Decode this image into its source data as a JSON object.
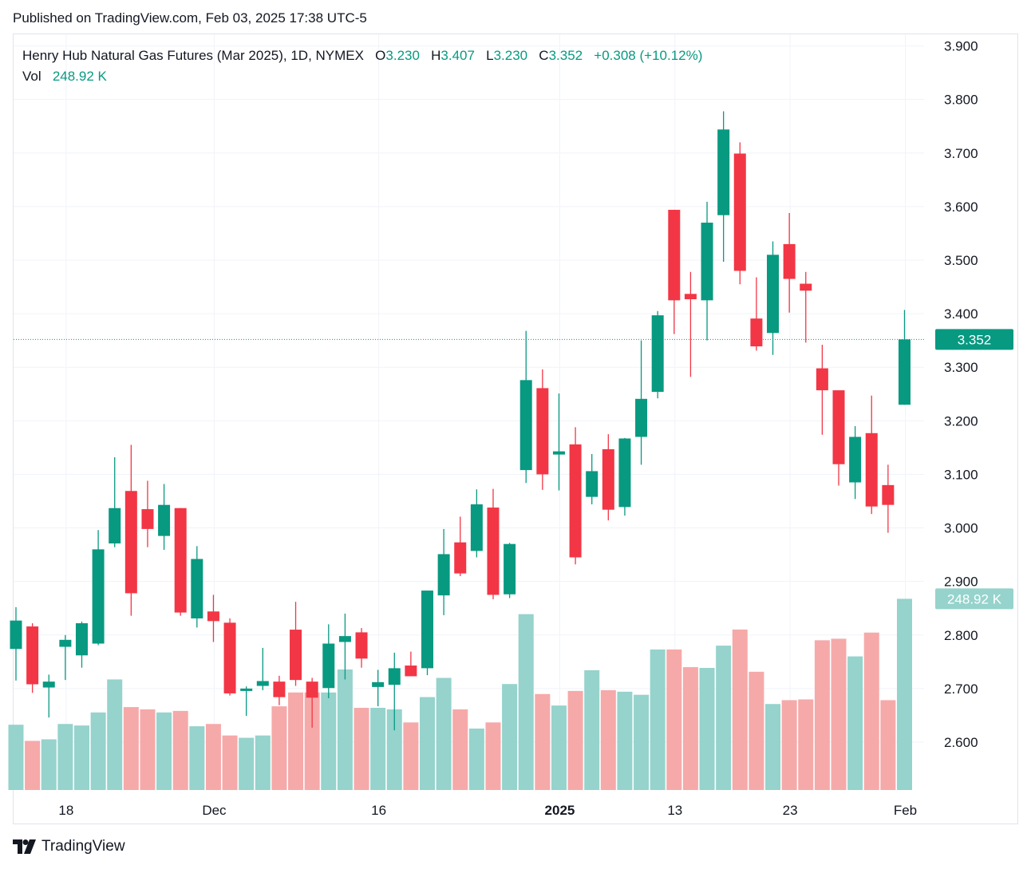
{
  "header": {
    "published": "Published on TradingView.com, Feb 03, 2025 17:38 UTC-5"
  },
  "legend": {
    "symbol": "Henry Hub Natural Gas Futures (Mar 2025), 1D, NYMEX",
    "o_label": "O",
    "o_value": "3.230",
    "h_label": "H",
    "h_value": "3.407",
    "l_label": "L",
    "l_value": "3.230",
    "c_label": "C",
    "c_value": "3.352",
    "change": "+0.308 (+10.12%)",
    "vol_label": "Vol",
    "vol_value": "248.92 K"
  },
  "footer": {
    "brand": "TradingView"
  },
  "colors": {
    "up": "#089981",
    "down": "#f23645",
    "vol_up": "#95d3cc",
    "vol_down": "#f6a9a9",
    "grid": "#f0f3fa",
    "text": "#131722"
  },
  "chart_data": {
    "type": "candlestick",
    "ylim": [
      2.51,
      3.94
    ],
    "y_ticks": [
      "3.900",
      "3.800",
      "3.700",
      "3.600",
      "3.500",
      "3.400",
      "3.300",
      "3.200",
      "3.100",
      "3.000",
      "2.900",
      "2.800",
      "2.700",
      "2.600"
    ],
    "x_ticks": [
      {
        "index": 3,
        "label": "18"
      },
      {
        "index": 12,
        "label": "Dec"
      },
      {
        "index": 22,
        "label": "16"
      },
      {
        "index": 33,
        "label": "2025",
        "bold": true
      },
      {
        "index": 40,
        "label": "13"
      },
      {
        "index": 47,
        "label": "23"
      },
      {
        "index": 54,
        "label": "Feb"
      }
    ],
    "last_price_label": "3.352",
    "last_price": 3.352,
    "last_volume_label": "248.92 K",
    "volume_scale_max": 265,
    "candles": [
      {
        "o": 2.774,
        "h": 2.852,
        "l": 2.715,
        "c": 2.827
      },
      {
        "o": 2.816,
        "h": 2.822,
        "l": 2.692,
        "c": 2.708
      },
      {
        "o": 2.702,
        "h": 2.726,
        "l": 2.646,
        "c": 2.713
      },
      {
        "o": 2.778,
        "h": 2.8,
        "l": 2.716,
        "c": 2.791
      },
      {
        "o": 2.762,
        "h": 2.825,
        "l": 2.739,
        "c": 2.822
      },
      {
        "o": 2.784,
        "h": 2.996,
        "l": 2.781,
        "c": 2.96
      },
      {
        "o": 2.971,
        "h": 3.132,
        "l": 2.964,
        "c": 3.037
      },
      {
        "o": 3.069,
        "h": 3.155,
        "l": 2.836,
        "c": 2.878
      },
      {
        "o": 3.035,
        "h": 3.088,
        "l": 2.964,
        "c": 2.998
      },
      {
        "o": 2.985,
        "h": 3.082,
        "l": 2.959,
        "c": 3.043
      },
      {
        "o": 3.037,
        "h": 3.037,
        "l": 2.836,
        "c": 2.842
      },
      {
        "o": 2.831,
        "h": 2.966,
        "l": 2.814,
        "c": 2.942
      },
      {
        "o": 2.844,
        "h": 2.875,
        "l": 2.787,
        "c": 2.826
      },
      {
        "o": 2.823,
        "h": 2.831,
        "l": 2.687,
        "c": 2.691
      },
      {
        "o": 2.698,
        "h": 2.704,
        "l": 2.649,
        "c": 2.7
      },
      {
        "o": 2.705,
        "h": 2.776,
        "l": 2.697,
        "c": 2.714
      },
      {
        "o": 2.713,
        "h": 2.724,
        "l": 2.669,
        "c": 2.684
      },
      {
        "o": 2.81,
        "h": 2.862,
        "l": 2.705,
        "c": 2.716
      },
      {
        "o": 2.713,
        "h": 2.72,
        "l": 2.627,
        "c": 2.683
      },
      {
        "o": 2.701,
        "h": 2.82,
        "l": 2.682,
        "c": 2.784
      },
      {
        "o": 2.787,
        "h": 2.84,
        "l": 2.717,
        "c": 2.798
      },
      {
        "o": 2.805,
        "h": 2.813,
        "l": 2.739,
        "c": 2.756
      },
      {
        "o": 2.703,
        "h": 2.735,
        "l": 2.667,
        "c": 2.712
      },
      {
        "o": 2.707,
        "h": 2.767,
        "l": 2.622,
        "c": 2.738
      },
      {
        "o": 2.743,
        "h": 2.769,
        "l": 2.726,
        "c": 2.723
      },
      {
        "o": 2.738,
        "h": 2.87,
        "l": 2.725,
        "c": 2.883
      },
      {
        "o": 2.874,
        "h": 2.998,
        "l": 2.837,
        "c": 2.951
      },
      {
        "o": 2.973,
        "h": 3.021,
        "l": 2.91,
        "c": 2.915
      },
      {
        "o": 2.957,
        "h": 3.072,
        "l": 2.945,
        "c": 3.044
      },
      {
        "o": 3.038,
        "h": 3.073,
        "l": 2.867,
        "c": 2.875
      },
      {
        "o": 2.876,
        "h": 2.972,
        "l": 2.869,
        "c": 2.97
      },
      {
        "o": 3.108,
        "h": 3.368,
        "l": 3.084,
        "c": 3.276
      },
      {
        "o": 3.261,
        "h": 3.296,
        "l": 3.071,
        "c": 3.1
      },
      {
        "o": 3.137,
        "h": 3.251,
        "l": 3.07,
        "c": 3.143
      },
      {
        "o": 3.156,
        "h": 3.188,
        "l": 2.932,
        "c": 2.945
      },
      {
        "o": 3.058,
        "h": 3.138,
        "l": 3.044,
        "c": 3.106
      },
      {
        "o": 3.147,
        "h": 3.175,
        "l": 3.014,
        "c": 3.034
      },
      {
        "o": 3.039,
        "h": 3.168,
        "l": 3.023,
        "c": 3.167
      },
      {
        "o": 3.17,
        "h": 3.35,
        "l": 3.118,
        "c": 3.241
      },
      {
        "o": 3.254,
        "h": 3.405,
        "l": 3.242,
        "c": 3.397
      },
      {
        "o": 3.594,
        "h": 3.594,
        "l": 3.362,
        "c": 3.425
      },
      {
        "o": 3.437,
        "h": 3.478,
        "l": 3.282,
        "c": 3.427
      },
      {
        "o": 3.425,
        "h": 3.609,
        "l": 3.35,
        "c": 3.57
      },
      {
        "o": 3.584,
        "h": 3.778,
        "l": 3.497,
        "c": 3.744
      },
      {
        "o": 3.699,
        "h": 3.72,
        "l": 3.455,
        "c": 3.48
      },
      {
        "o": 3.391,
        "h": 3.468,
        "l": 3.331,
        "c": 3.339
      },
      {
        "o": 3.364,
        "h": 3.535,
        "l": 3.323,
        "c": 3.51
      },
      {
        "o": 3.53,
        "h": 3.588,
        "l": 3.402,
        "c": 3.465
      },
      {
        "o": 3.456,
        "h": 3.478,
        "l": 3.346,
        "c": 3.443
      },
      {
        "o": 3.298,
        "h": 3.342,
        "l": 3.174,
        "c": 3.257
      },
      {
        "o": 3.257,
        "h": 3.254,
        "l": 3.079,
        "c": 3.119
      },
      {
        "o": 3.085,
        "h": 3.19,
        "l": 3.054,
        "c": 3.17
      },
      {
        "o": 3.177,
        "h": 3.247,
        "l": 3.026,
        "c": 3.04
      },
      {
        "o": 3.08,
        "h": 3.118,
        "l": 2.991,
        "c": 3.043
      },
      {
        "o": 3.23,
        "h": 3.407,
        "l": 3.23,
        "c": 3.352
      }
    ],
    "volumes": [
      85,
      64,
      66,
      86,
      84,
      101,
      144,
      108,
      105,
      101,
      103,
      83,
      86,
      71,
      68,
      71,
      109,
      127,
      127,
      127,
      157,
      107,
      107,
      105,
      88,
      121,
      146,
      105,
      80,
      88,
      138,
      229,
      125,
      110,
      129,
      156,
      130,
      128,
      124,
      183,
      183,
      160,
      159,
      188,
      209,
      154,
      112,
      117,
      118,
      195,
      197,
      174,
      205,
      117,
      249
    ]
  }
}
